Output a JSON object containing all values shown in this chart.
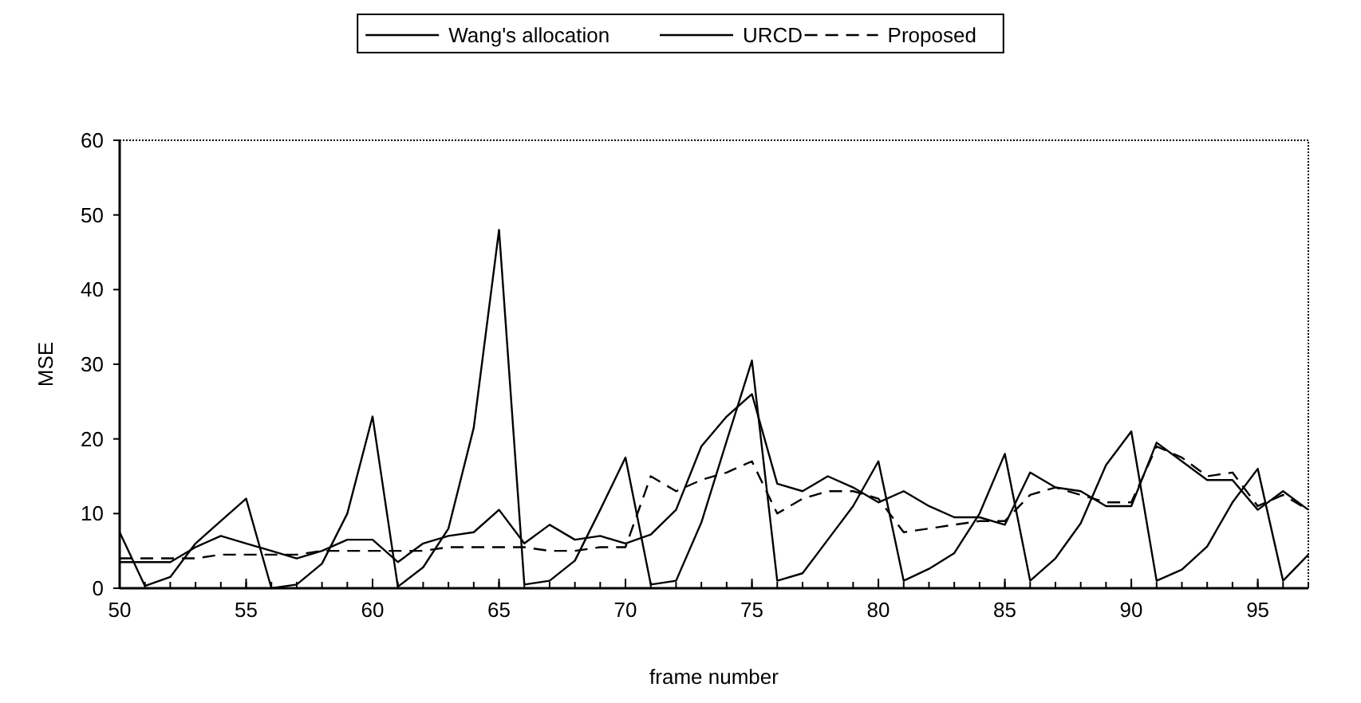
{
  "chart_data": {
    "type": "line",
    "xlabel": "frame number",
    "ylabel": "MSE",
    "x": [
      50,
      51,
      52,
      53,
      54,
      55,
      56,
      57,
      58,
      59,
      60,
      61,
      62,
      63,
      64,
      65,
      66,
      67,
      68,
      69,
      70,
      71,
      72,
      73,
      74,
      75,
      76,
      77,
      78,
      79,
      80,
      81,
      82,
      83,
      84,
      85,
      86,
      87,
      88,
      89,
      90,
      91,
      92,
      93,
      94,
      95,
      96,
      97
    ],
    "series": [
      {
        "name": "Wang's allocation",
        "color": "#000000",
        "line_style": "solid",
        "values": [
          7.5,
          0.3,
          1.5,
          6,
          9,
          12,
          0,
          0.5,
          3.3,
          10,
          23,
          0.2,
          2.8,
          8,
          21.5,
          48,
          0.5,
          1,
          3.7,
          10.5,
          17.5,
          0.5,
          1,
          8.8,
          19.7,
          30.5,
          1,
          2,
          6.5,
          11,
          17,
          1,
          2.6,
          4.7,
          10,
          18,
          1,
          4,
          8.7,
          16.5,
          21,
          1,
          2.5,
          5.6,
          11.5,
          16,
          1,
          4.5
        ]
      },
      {
        "name": "URCD",
        "color": "#000000",
        "line_style": "solid",
        "values": [
          3.5,
          3.5,
          3.5,
          5.5,
          7,
          6,
          5,
          4,
          5,
          6.5,
          6.5,
          3.5,
          6,
          7,
          7.5,
          10.5,
          6,
          8.5,
          6.5,
          7,
          6,
          7.2,
          10.5,
          19,
          23,
          26,
          14,
          13,
          15,
          13.5,
          11.5,
          13,
          11,
          9.5,
          9.5,
          8.5,
          15.5,
          13.5,
          13,
          11,
          11,
          19.5,
          17,
          14.5,
          14.5,
          10.5,
          13,
          10.5
        ]
      },
      {
        "name": "Proposed",
        "color": "#000000",
        "line_style": "dashed",
        "values": [
          4,
          4,
          4,
          4,
          4.5,
          4.5,
          4.5,
          4.5,
          5,
          5,
          5,
          5,
          5,
          5.5,
          5.5,
          5.5,
          5.5,
          5,
          5,
          5.5,
          5.5,
          15,
          13,
          14.5,
          15.5,
          17,
          10,
          12,
          13,
          13,
          12,
          7.5,
          8,
          8.5,
          9,
          9,
          12.5,
          13.5,
          12.5,
          11.5,
          11.5,
          19,
          17.5,
          15,
          15.5,
          11,
          12.5,
          10.5
        ]
      }
    ],
    "xlim": [
      50,
      97
    ],
    "xticks": [
      50,
      55,
      60,
      65,
      70,
      75,
      80,
      85,
      90,
      95
    ],
    "ylim": [
      0,
      60
    ],
    "yticks": [
      0,
      10,
      20,
      30,
      40,
      50,
      60
    ],
    "grid": false,
    "legend": "top",
    "marker": "none"
  }
}
